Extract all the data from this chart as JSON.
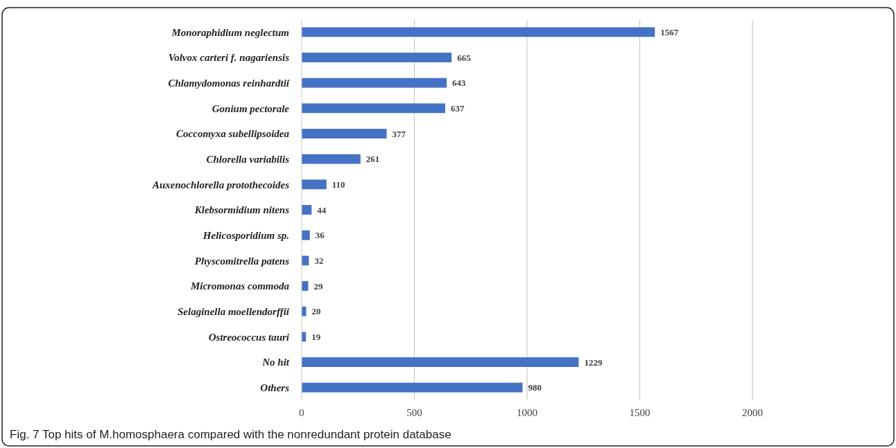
{
  "chart_data": {
    "type": "bar",
    "orientation": "horizontal",
    "categories": [
      "Monoraphidium neglectum",
      "Volvox carteri f. nagariensis",
      "Chlamydomonas reinhardtii",
      "Gonium pectorale",
      "Coccomyxa subellipsoidea",
      "Chlorella variabilis",
      "Auxenochlorella protothecoides",
      "Klebsormidium nitens",
      "Helicosporidium sp.",
      "Physcomitrella patens",
      "Micromonas commoda",
      "Selaginella moellendorffii",
      "Ostreococcus tauri",
      "No hit",
      "Others"
    ],
    "values": [
      1567,
      665,
      643,
      637,
      377,
      261,
      110,
      44,
      36,
      32,
      29,
      20,
      19,
      1229,
      980
    ],
    "color": "#4472c4",
    "xlim": [
      0,
      2000
    ],
    "xticks": [
      0,
      500,
      1000,
      1500,
      2000
    ],
    "grid": "x",
    "data_labels": true,
    "annotations": [
      "Fig. 7 Top hits of M.homosphaera compared with the nonredundant protein database"
    ]
  }
}
